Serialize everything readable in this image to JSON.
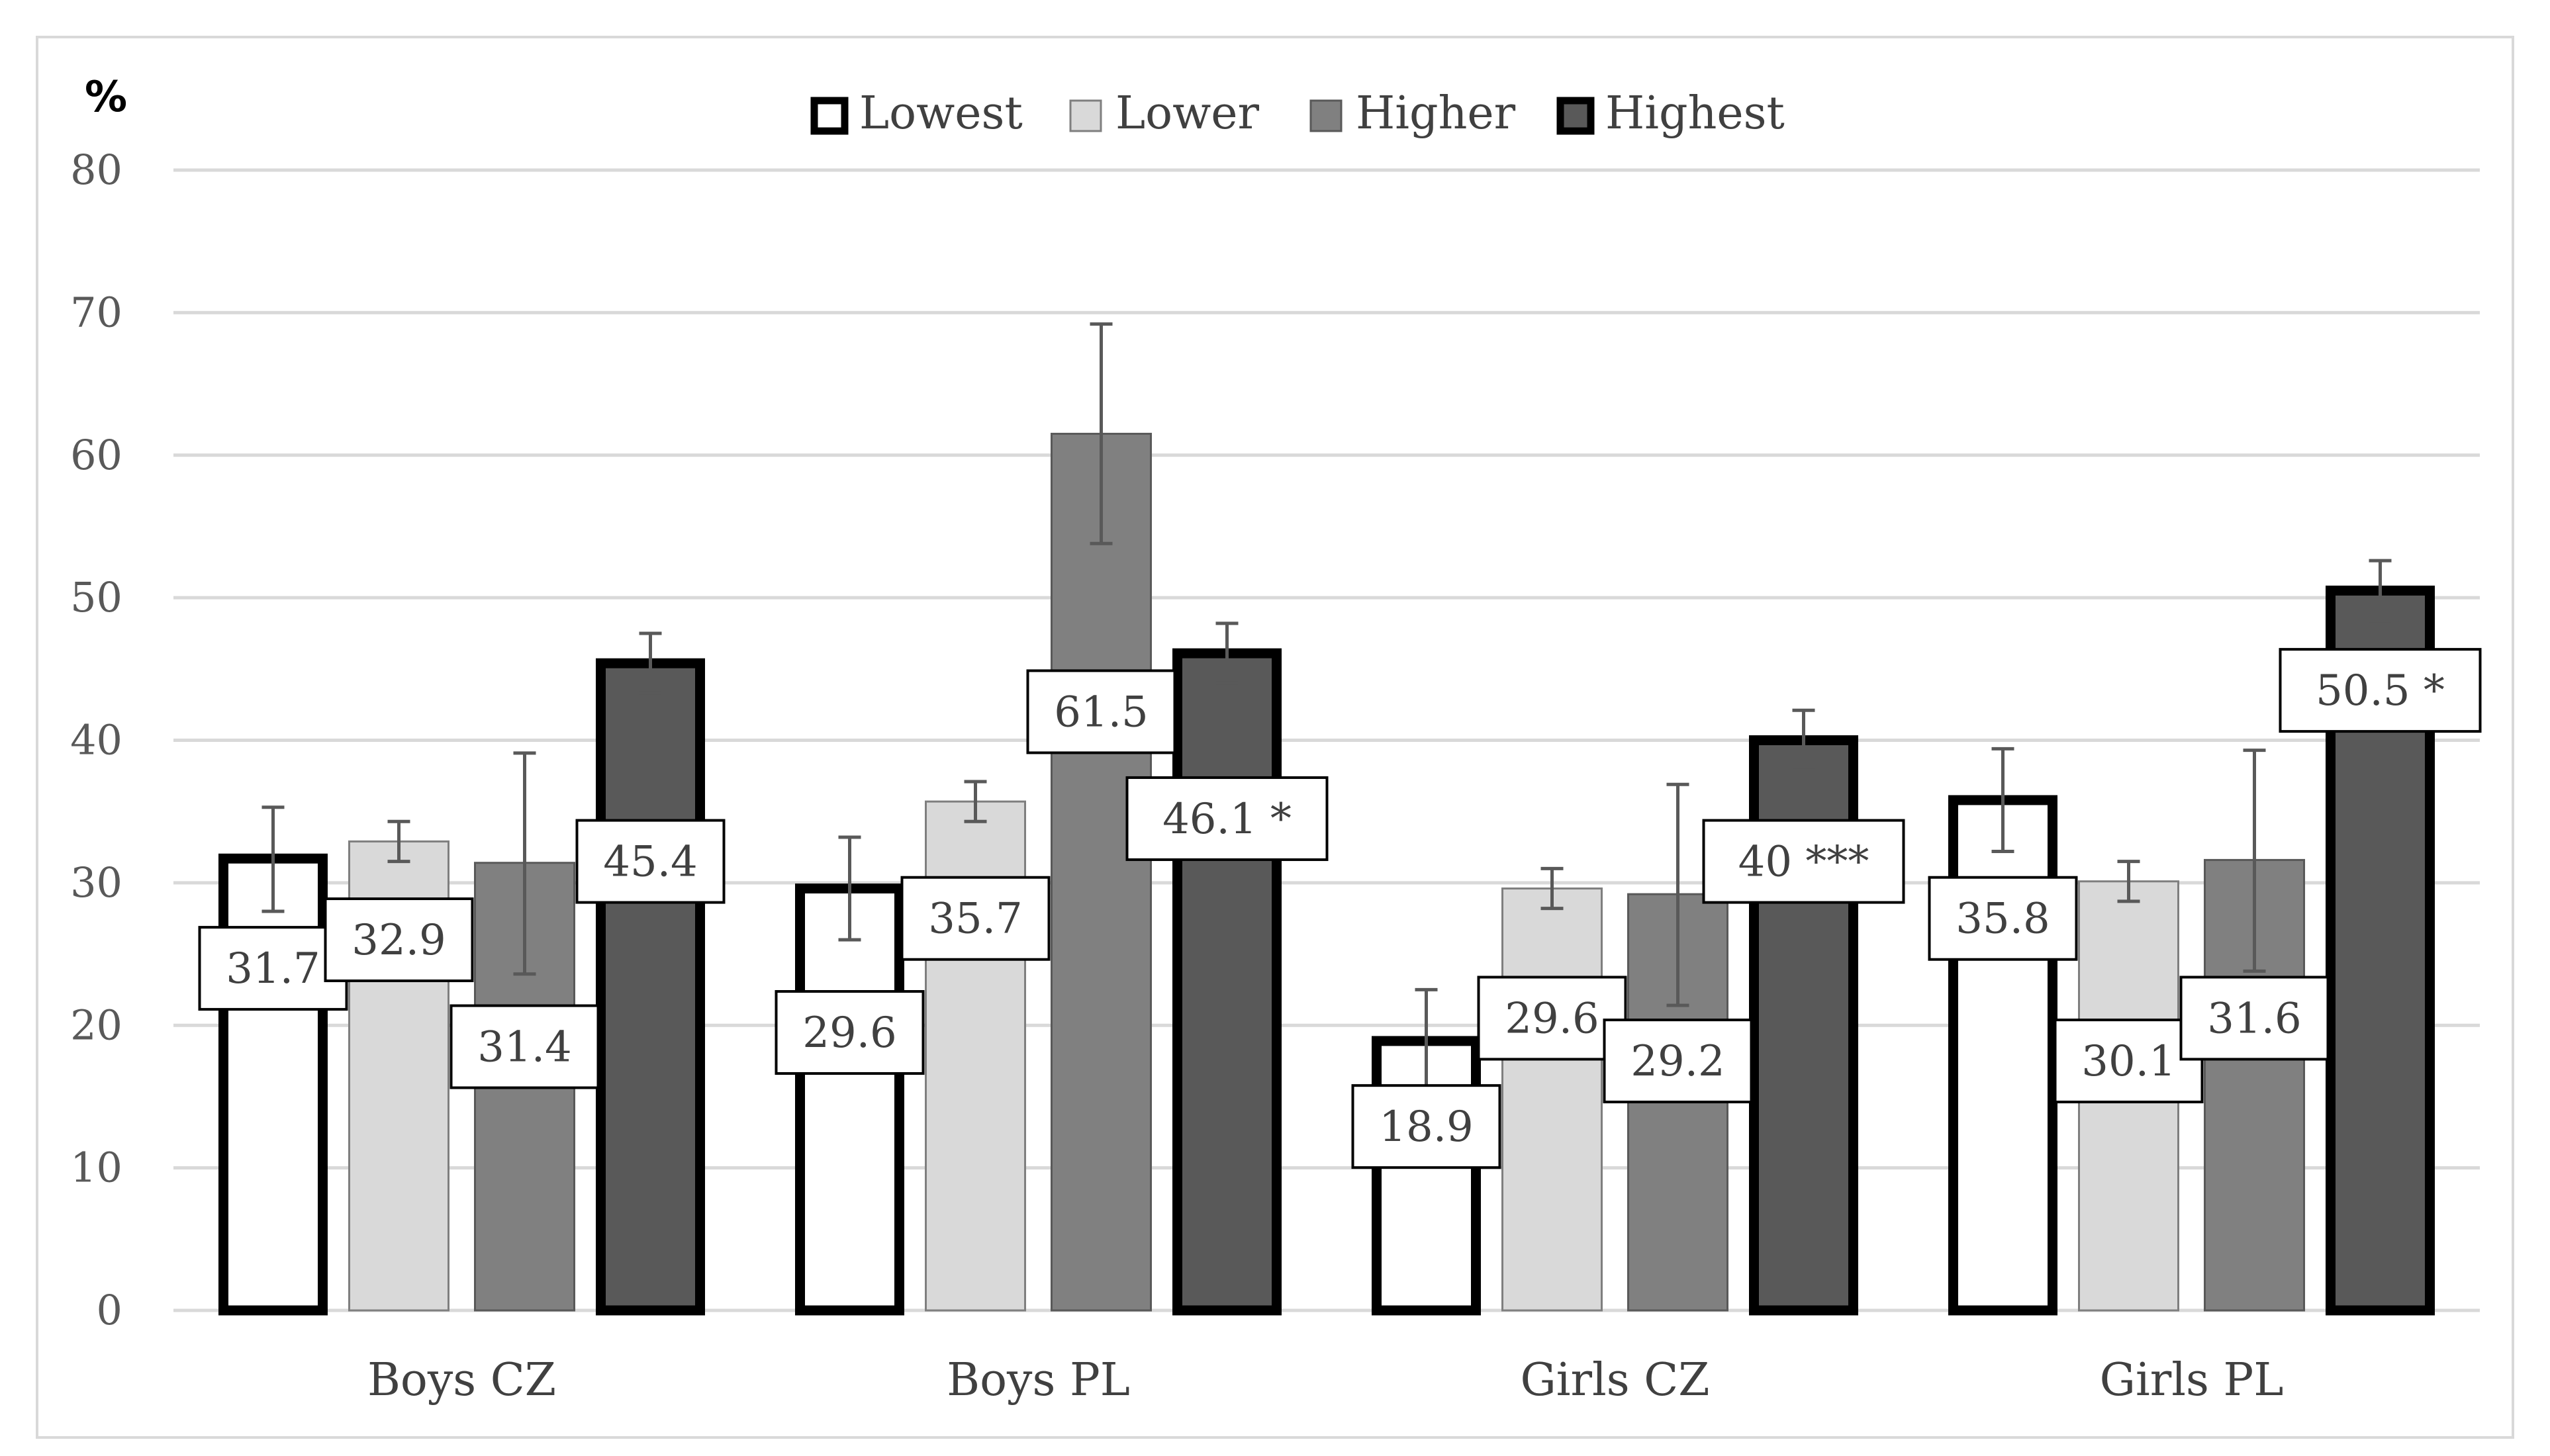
{
  "chart_data": {
    "type": "bar",
    "y_unit_label": "%",
    "ylim": [
      0,
      80
    ],
    "y_ticks": [
      "0",
      "10",
      "20",
      "30",
      "40",
      "50",
      "60",
      "70",
      "80"
    ],
    "grid": true,
    "legend_position": "top",
    "categories": [
      "Boys CZ",
      "Boys PL",
      "Girls CZ",
      "Girls PL"
    ],
    "series": [
      {
        "name": "Lowest",
        "fill": "#ffffff",
        "stroke": "#000000",
        "values": [
          31.7,
          29.6,
          18.9,
          35.8
        ],
        "err_low": [
          28.0,
          26.0,
          15.3,
          32.2
        ],
        "err_high": [
          35.3,
          33.2,
          22.5,
          39.4
        ],
        "labels": [
          "31.7",
          "29.6",
          "18.9",
          "35.8"
        ]
      },
      {
        "name": "Lower",
        "fill": "#d9d9d9",
        "stroke": "#7f7f7f",
        "values": [
          32.9,
          35.7,
          29.6,
          30.1
        ],
        "err_low": [
          31.5,
          34.3,
          28.2,
          28.7
        ],
        "err_high": [
          34.3,
          37.1,
          31.0,
          31.5
        ],
        "labels": [
          "32.9",
          "35.7",
          "29.6",
          "30.1"
        ]
      },
      {
        "name": "Higher",
        "fill": "#808080",
        "stroke": "#595959",
        "values": [
          31.4,
          61.5,
          29.2,
          31.6
        ],
        "err_low": [
          23.6,
          53.8,
          21.4,
          23.8
        ],
        "err_high": [
          39.1,
          69.2,
          36.9,
          39.3
        ],
        "labels": [
          "31.4",
          "61.5",
          "29.2",
          "31.6"
        ]
      },
      {
        "name": "Highest",
        "fill": "#595959",
        "stroke": "#000000",
        "values": [
          45.4,
          46.1,
          40.0,
          50.5
        ],
        "err_low": [
          43.3,
          44.0,
          37.9,
          48.4
        ],
        "err_high": [
          47.5,
          48.2,
          42.1,
          52.6
        ],
        "labels": [
          "45.4",
          "46.1 *",
          "40 ***",
          "50.5 *"
        ]
      }
    ],
    "data_label_values": [
      [
        24,
        19.5,
        12.9,
        27.5
      ],
      [
        26,
        27.5,
        20.5,
        17.5
      ],
      [
        18.5,
        42,
        17.5,
        20.5
      ],
      [
        31.5,
        34.5,
        31.5,
        43.5
      ]
    ]
  }
}
